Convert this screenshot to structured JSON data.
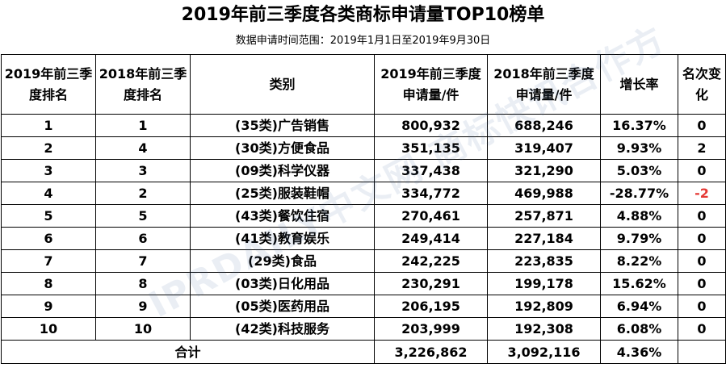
{
  "title": "2019年前三季度各类商标申请量TOP10榜单",
  "subtitle": "数据申请时间范围：2019年1月1日至2019年9月30日",
  "headers": {
    "rank2019": "2019年前三季度排名",
    "rank2018": "2018年前三季度排名",
    "category": "类别",
    "apps2019": "2019年前三季度申请量/件",
    "apps2018": "2018年前三季度申请量/件",
    "growth": "增长率",
    "change": "名次变化"
  },
  "rows": [
    {
      "rank2019": "1",
      "rank2018": "1",
      "category": "(35类)广告销售",
      "apps2019": "800,932",
      "apps2018": "688,246",
      "growth": "16.37%",
      "change": "0"
    },
    {
      "rank2019": "2",
      "rank2018": "4",
      "category": "(30类)方便食品",
      "apps2019": "351,135",
      "apps2018": "319,407",
      "growth": "9.93%",
      "change": "2"
    },
    {
      "rank2019": "3",
      "rank2018": "3",
      "category": "(09类)科学仪器",
      "apps2019": "337,438",
      "apps2018": "321,290",
      "growth": "5.03%",
      "change": "0"
    },
    {
      "rank2019": "4",
      "rank2018": "2",
      "category": "(25类)服装鞋帽",
      "apps2019": "334,772",
      "apps2018": "469,988",
      "growth": "-28.77%",
      "change": "-2"
    },
    {
      "rank2019": "5",
      "rank2018": "5",
      "category": "(43类)餐饮住宿",
      "apps2019": "270,461",
      "apps2018": "257,871",
      "growth": "4.88%",
      "change": "0"
    },
    {
      "rank2019": "6",
      "rank2018": "6",
      "category": "(41类)教育娱乐",
      "apps2019": "249,414",
      "apps2018": "227,184",
      "growth": "9.79%",
      "change": "0"
    },
    {
      "rank2019": "7",
      "rank2018": "7",
      "category": "(29类)食品",
      "apps2019": "242,225",
      "apps2018": "223,835",
      "growth": "8.22%",
      "change": "0"
    },
    {
      "rank2019": "8",
      "rank2018": "8",
      "category": "(03类)日化用品",
      "apps2019": "230,291",
      "apps2018": "199,178",
      "growth": "15.62%",
      "change": "0"
    },
    {
      "rank2019": "9",
      "rank2018": "9",
      "category": "(05类)医药用品",
      "apps2019": "206,195",
      "apps2018": "192,809",
      "growth": "6.94%",
      "change": "0"
    },
    {
      "rank2019": "10",
      "rank2018": "10",
      "category": "(42类)科技服务",
      "apps2019": "203,999",
      "apps2018": "192,308",
      "growth": "6.08%",
      "change": "0"
    }
  ],
  "total": {
    "label": "合计",
    "apps2019": "3,226,862",
    "apps2018": "3,092,116",
    "growth": "4.36%",
    "change": ""
  },
  "watermark": "IPRDAILY中文网 商标快讯合作方",
  "colors": {
    "negative": "#e53935",
    "border": "#000000"
  }
}
